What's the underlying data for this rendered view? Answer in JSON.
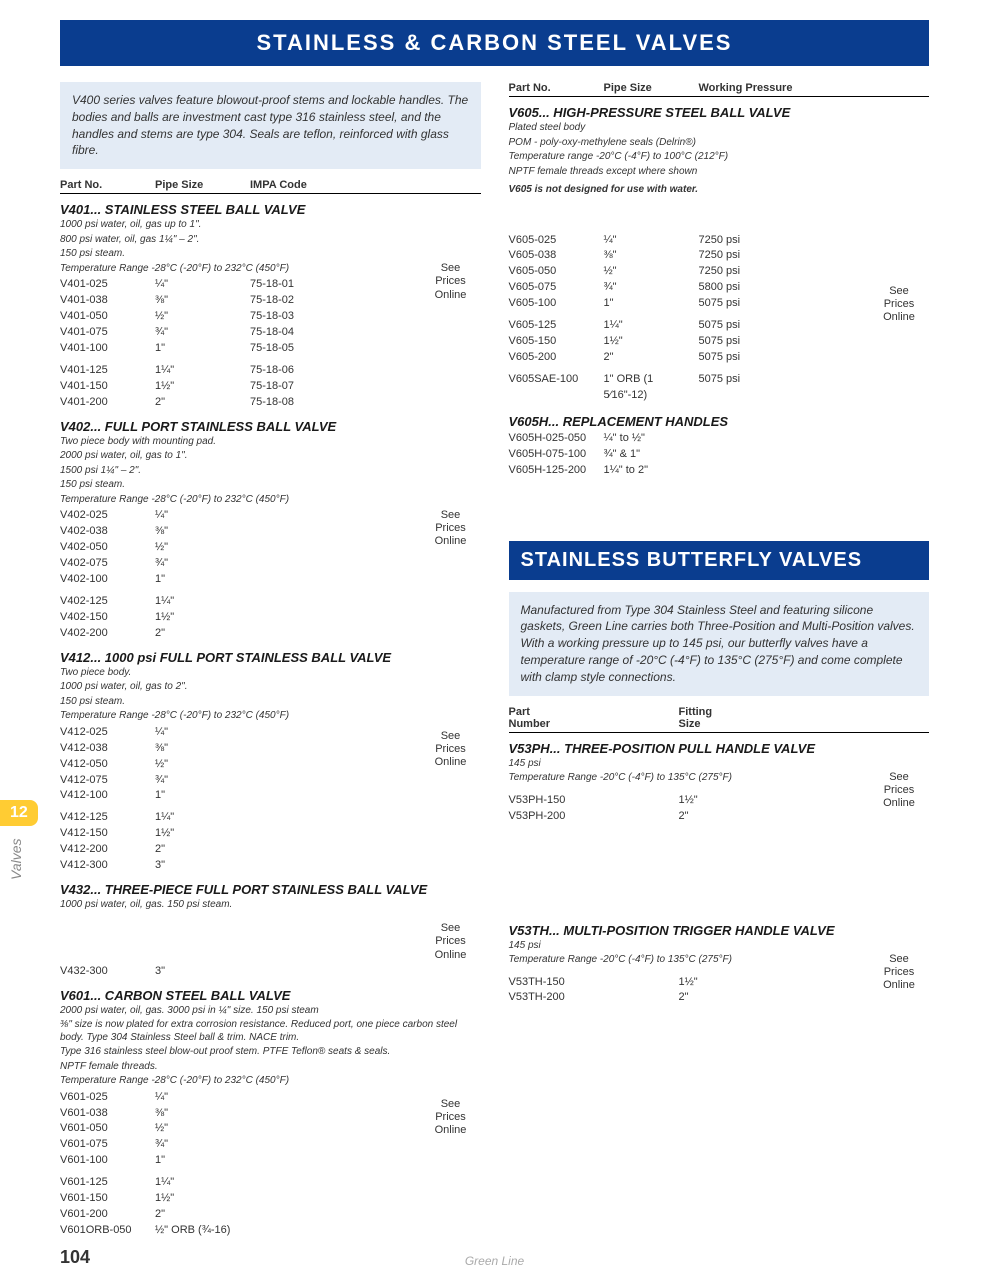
{
  "colors": {
    "banner": "#0a3d8f",
    "intro_bg": "#e3ebf5",
    "tab": "#ffcc33"
  },
  "page_number": "104",
  "footer_brand": "Green Line",
  "side_tab": "12",
  "side_label": "Valves",
  "banner1": "STAINLESS & CARBON STEEL VALVES",
  "banner2": "STAINLESS BUTTERFLY VALVES",
  "intro_left": "V400 series valves feature blowout-proof stems and lockable handles. The bodies and balls are investment cast type 316 stainless steel, and the handles and stems are type 304. Seals are teflon, reinforced with glass fibre.",
  "intro_right": "Manufactured from Type 304 Stainless Steel and featuring silicone gaskets, Green Line carries both Three-Position and Multi-Position valves. With a working pressure up to 145 psi, our butterfly valves have a temperature range of -20°C (-4°F) to 135°C (275°F) and come complete with clamp style connections.",
  "headers_left": {
    "part": "Part No.",
    "size": "Pipe Size",
    "impa": "IMPA Code"
  },
  "headers_right_top": {
    "part": "Part No.",
    "size": "Pipe Size",
    "press": "Working Pressure"
  },
  "headers_right_btm": {
    "part": "Part\nNumber",
    "size": "Fitting\nSize"
  },
  "price_label": "See\nPrices\nOnline",
  "v401": {
    "title": "V401... STAINLESS STEEL BALL VALVE",
    "notes": [
      "1000 psi water, oil, gas up to 1\".",
      "800 psi water, oil, gas 1¼\" – 2\".",
      "150 psi steam.",
      "Temperature Range -28°C (-20°F) to 232°C (450°F)"
    ],
    "rows": [
      [
        "V401-025",
        "¼\"",
        "75-18-01"
      ],
      [
        "V401-038",
        "⅜\"",
        "75-18-02"
      ],
      [
        "V401-050",
        "½\"",
        "75-18-03"
      ],
      [
        "V401-075",
        "¾\"",
        "75-18-04"
      ],
      [
        "V401-100",
        "1\"",
        "75-18-05"
      ]
    ],
    "rows2": [
      [
        "V401-125",
        "1¼\"",
        "75-18-06"
      ],
      [
        "V401-150",
        "1½\"",
        "75-18-07"
      ],
      [
        "V401-200",
        "2\"",
        "75-18-08"
      ]
    ]
  },
  "v402": {
    "title": "V402... FULL PORT STAINLESS BALL VALVE",
    "notes": [
      "Two piece body with mounting pad.",
      "2000 psi water, oil, gas to 1\".",
      "1500 psi 1¼\" – 2\".",
      "150 psi steam.",
      "Temperature Range -28°C (-20°F) to 232°C (450°F)"
    ],
    "rows": [
      [
        "V402-025",
        "¼\""
      ],
      [
        "V402-038",
        "⅜\""
      ],
      [
        "V402-050",
        "½\""
      ],
      [
        "V402-075",
        "¾\""
      ],
      [
        "V402-100",
        "1\""
      ]
    ],
    "rows2": [
      [
        "V402-125",
        "1¼\""
      ],
      [
        "V402-150",
        "1½\""
      ],
      [
        "V402-200",
        "2\""
      ]
    ]
  },
  "v412": {
    "title": "V412... 1000 psi FULL PORT STAINLESS BALL VALVE",
    "notes": [
      "Two piece body.",
      "1000 psi water, oil, gas to 2\".",
      "150 psi steam.",
      "Temperature Range -28°C (-20°F) to 232°C (450°F)"
    ],
    "rows": [
      [
        "V412-025",
        "¼\""
      ],
      [
        "V412-038",
        "⅜\""
      ],
      [
        "V412-050",
        "½\""
      ],
      [
        "V412-075",
        "¾\""
      ],
      [
        "V412-100",
        "1\""
      ]
    ],
    "rows2": [
      [
        "V412-125",
        "1¼\""
      ],
      [
        "V412-150",
        "1½\""
      ],
      [
        "V412-200",
        "2\""
      ],
      [
        "V412-300",
        "3\""
      ]
    ]
  },
  "v432": {
    "title": "V432... THREE-PIECE FULL PORT STAINLESS BALL VALVE",
    "notes": [
      "1000 psi water, oil, gas. 150 psi steam."
    ],
    "rows": [
      [
        "V432-300",
        "3\""
      ]
    ]
  },
  "v601": {
    "title": "V601... CARBON STEEL BALL VALVE",
    "notes": [
      "2000 psi water, oil, gas. 3000 psi in ¼\" size. 150 psi steam",
      "⅜\" size is now plated for extra corrosion resistance. Reduced port, one piece carbon steel body. Type 304 Stainless Steel ball & trim. NACE trim.",
      "Type 316 stainless steel blow-out proof stem. PTFE Teflon® seats & seals.",
      "NPTF female threads.",
      "Temperature Range -28°C (-20°F) to 232°C (450°F)"
    ],
    "rows": [
      [
        "V601-025",
        "¼\""
      ],
      [
        "V601-038",
        "⅜\""
      ],
      [
        "V601-050",
        "½\""
      ],
      [
        "V601-075",
        "¾\""
      ],
      [
        "V601-100",
        "1\""
      ]
    ],
    "rows2": [
      [
        "V601-125",
        "1¼\""
      ],
      [
        "V601-150",
        "1½\""
      ],
      [
        "V601-200",
        "2\""
      ],
      [
        "V601ORB-050",
        "½\" ORB (¾-16)"
      ]
    ]
  },
  "v605": {
    "title": "V605... HIGH-PRESSURE STEEL BALL VALVE",
    "notes": [
      "Plated steel body",
      "POM - poly-oxy-methylene seals (Delrin®)",
      "Temperature range -20°C (-4°F) to 100°C (212°F)",
      "NPTF female threads except where shown"
    ],
    "bold_note": "V605 is not designed for use with water.",
    "rows": [
      [
        "V605-025",
        "¼\"",
        "7250 psi"
      ],
      [
        "V605-038",
        "⅜\"",
        "7250 psi"
      ],
      [
        "V605-050",
        "½\"",
        "7250 psi"
      ],
      [
        "V605-075",
        "¾\"",
        "5800 psi"
      ],
      [
        "V605-100",
        "1\"",
        "5075 psi"
      ]
    ],
    "rows2": [
      [
        "V605-125",
        "1¼\"",
        "5075 psi"
      ],
      [
        "V605-150",
        "1½\"",
        "5075 psi"
      ],
      [
        "V605-200",
        "2\"",
        "5075 psi"
      ]
    ],
    "rows3": [
      [
        "V605SAE-100",
        "1\" ORB (1 5⁄16\"-12)",
        "5075 psi"
      ]
    ]
  },
  "v605h": {
    "title": "V605H... REPLACEMENT HANDLES",
    "rows": [
      [
        "V605H-025-050",
        "¼\" to ½\""
      ],
      [
        "V605H-075-100",
        "¾\" & 1\""
      ],
      [
        "V605H-125-200",
        "1¼\" to 2\""
      ]
    ]
  },
  "v53ph": {
    "title": "V53PH... THREE-POSITION PULL HANDLE VALVE",
    "notes": [
      "145 psi",
      "Temperature Range -20°C (-4°F) to 135°C (275°F)"
    ],
    "rows": [
      [
        "V53PH-150",
        "1½\""
      ],
      [
        "V53PH-200",
        "2\""
      ]
    ]
  },
  "v53th": {
    "title": "V53TH... MULTI-POSITION TRIGGER HANDLE VALVE",
    "notes": [
      "145 psi",
      "Temperature Range -20°C (-4°F) to 135°C (275°F)"
    ],
    "rows": [
      [
        "V53TH-150",
        "1½\""
      ],
      [
        "V53TH-200",
        "2\""
      ]
    ]
  }
}
